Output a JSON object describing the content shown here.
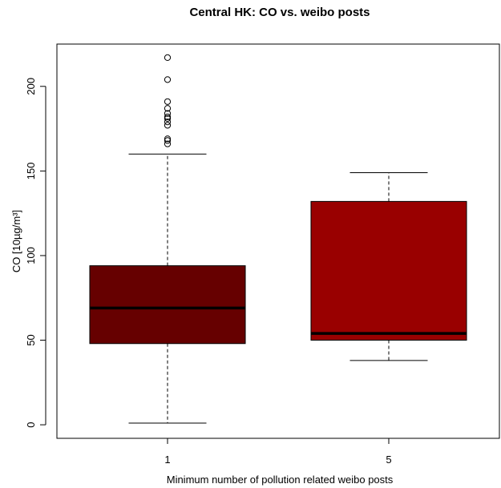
{
  "chart_data": {
    "type": "boxplot",
    "title": "Central HK: CO vs. weibo posts",
    "xlabel": "Minimum number of pollution related weibo posts",
    "ylabel": "CO  [10µg/m³]",
    "ylim": [
      -8,
      225
    ],
    "yticks": [
      0,
      50,
      100,
      150,
      200
    ],
    "categories": [
      "1",
      "5"
    ],
    "boxes": [
      {
        "category": "1",
        "color": "#660000",
        "whisker_low": 1,
        "q1": 48,
        "median": 69,
        "q3": 94,
        "whisker_high": 160,
        "outliers": [
          166,
          168,
          169,
          177,
          179,
          181,
          182,
          184,
          187,
          191,
          204,
          217
        ]
      },
      {
        "category": "5",
        "color": "#990000",
        "whisker_low": 38,
        "q1": 50,
        "median": 54,
        "q3": 132,
        "whisker_high": 149,
        "outliers": []
      }
    ],
    "grid": false,
    "legend": "none"
  }
}
